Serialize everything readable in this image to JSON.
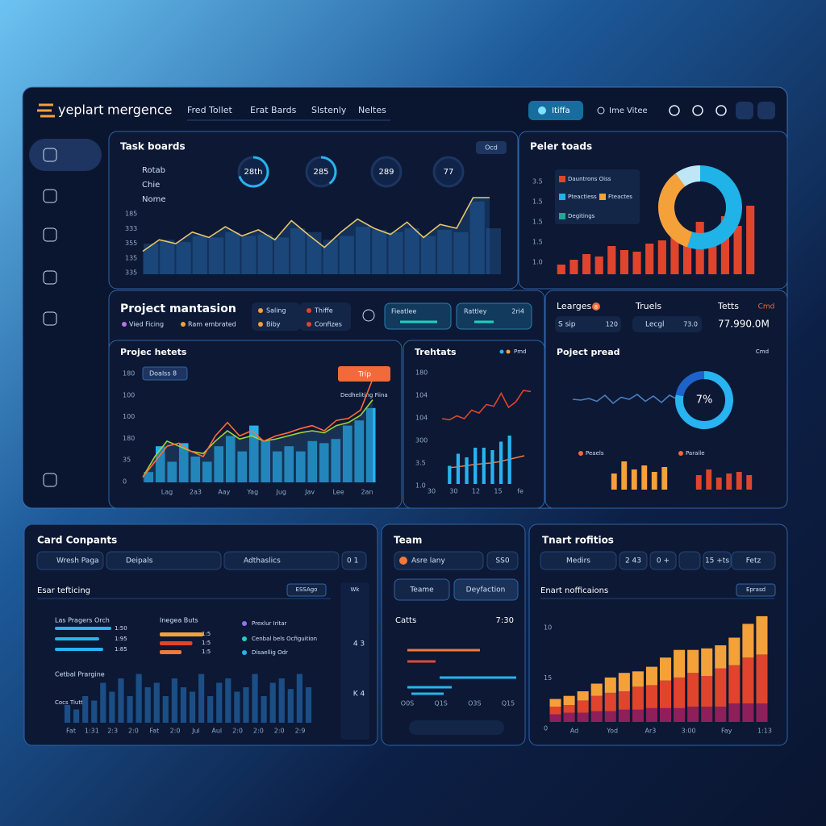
{
  "header": {
    "logo": "yeplart",
    "brand": "mergence",
    "nav": [
      "Fred Tollet",
      "Erat Bards",
      "Slstenly",
      "Neltes"
    ],
    "button": "Itiffa",
    "link": "Ime Vitee"
  },
  "task_boards": {
    "title": "Task boards",
    "badge": "Ocd",
    "legend": [
      "Rotab",
      "Chie",
      "Nome"
    ],
    "gauges": [
      {
        "label": "28th",
        "value": 70
      },
      {
        "label": "285",
        "value": 40
      },
      {
        "label": "289",
        "value": 0
      },
      {
        "label": "77",
        "value": 0
      }
    ],
    "y_labels": [
      "185",
      "333",
      "355",
      "135",
      "335"
    ],
    "line": [
      30,
      45,
      40,
      55,
      48,
      62,
      50,
      58,
      45,
      70,
      52,
      35,
      55,
      72,
      60,
      52,
      68,
      48,
      65,
      60,
      100,
      100
    ],
    "bars": [
      40,
      45,
      42,
      50,
      48,
      55,
      50,
      52,
      48,
      60,
      55,
      45,
      50,
      62,
      58,
      55,
      60,
      50,
      58,
      55,
      95,
      60
    ]
  },
  "peer_toads": {
    "title": "Peler toads",
    "legend": [
      {
        "label": "Dauntrons Oiss",
        "color": "#e0442c"
      },
      {
        "label": "Pteactiess",
        "color": "#1fb3e8"
      },
      {
        "label": "Fteactes",
        "color": "#f5a13a"
      },
      {
        "label": "Degitings",
        "color": "#1fa89a"
      }
    ],
    "y_labels": [
      "3.5",
      "1.5",
      "1.5",
      "1.5",
      "1.0"
    ],
    "bars": [
      12,
      18,
      25,
      22,
      35,
      30,
      28,
      38,
      42,
      55,
      50,
      65,
      48,
      72,
      60,
      85
    ],
    "bar_color": "#e0442c",
    "donut": [
      {
        "color": "#1fb3e8",
        "value": 55
      },
      {
        "color": "#f5a13a",
        "value": 35
      },
      {
        "color": "#bfe6f7",
        "value": 10
      }
    ]
  },
  "project": {
    "title": "Project mantasion",
    "subtitles": [
      "Vied Ficing",
      "Ram embrated"
    ],
    "chips": [
      "Saling",
      "Thiffe",
      "Biby",
      "Confizes"
    ],
    "widgets": [
      "Fieatlee",
      "Rattley",
      "2ri4"
    ]
  },
  "project_notes": {
    "title": "Projec hetets",
    "badge": "Doalss 8",
    "button": "Trip",
    "tooltip": "Dedheliting Fiina",
    "y_labels": [
      "180",
      "100",
      "100",
      "180",
      "35",
      "0"
    ],
    "x_labels": [
      "Lag",
      "2a3",
      "Aay",
      "Yag",
      "Jug",
      "Jav",
      "Lee",
      "2an"
    ],
    "bars": [
      10,
      35,
      20,
      38,
      25,
      20,
      35,
      45,
      30,
      55,
      40,
      30,
      35,
      30,
      40,
      38,
      42,
      55,
      60,
      72
    ],
    "line_orange": [
      5,
      20,
      35,
      38,
      30,
      25,
      45,
      58,
      45,
      50,
      40,
      45,
      48,
      52,
      55,
      50,
      60,
      62,
      70,
      100
    ],
    "line_green": [
      5,
      25,
      40,
      35,
      30,
      28,
      40,
      50,
      42,
      45,
      40,
      42,
      45,
      48,
      50,
      48,
      55,
      58,
      65,
      80
    ]
  },
  "trends": {
    "title": "Trehtats",
    "legend": "Pmd",
    "y_labels": [
      "180",
      "104",
      "104",
      "300",
      "3.5",
      "1.0"
    ],
    "x_labels": [
      "30",
      "30",
      "12",
      "15",
      "fe"
    ],
    "line": [
      30,
      28,
      35,
      30,
      45,
      40,
      55,
      52,
      75,
      50,
      60,
      80,
      78
    ],
    "line2": [
      20,
      22,
      25,
      28,
      30,
      32,
      35,
      40,
      45,
      50
    ],
    "bars": [
      15,
      25,
      22,
      30,
      30,
      28,
      35,
      40
    ]
  },
  "stats": [
    {
      "label": "Learges",
      "badge": "8",
      "sub": "S sip",
      "value": "120"
    },
    {
      "label": "Truels",
      "sub": "Lecgl",
      "value": "73.0"
    },
    {
      "label": "Tetts",
      "badge": "Cmd",
      "value": "77.990.0M"
    }
  ],
  "project_pread": {
    "title": "Poject pread",
    "badge": "Cmd",
    "center_text": "7%",
    "ring": [
      {
        "color": "#27b4f0",
        "value": 78
      },
      {
        "color": "#1d63c9",
        "value": 22
      }
    ],
    "spark": [
      50,
      48,
      52,
      45,
      60,
      40,
      55,
      50,
      62,
      45,
      58,
      42,
      60,
      50
    ],
    "legend": [
      "Peaels",
      "Paraile"
    ],
    "bars_a": [
      20,
      35,
      25,
      30,
      22,
      28
    ],
    "bars_b": [
      18,
      25,
      15,
      20,
      22,
      18
    ]
  },
  "card": {
    "title": "Card Conpants",
    "fields": [
      "Wresh Paga",
      "Deipals",
      "Adthaslics",
      "0 1"
    ],
    "section": "Esar tefticing",
    "section_badge": "ESSAgo",
    "side_badge": "Wk",
    "progress_title": "Las Pragers Orch",
    "progress": [
      {
        "label": "1:50",
        "value": 70
      },
      {
        "label": "1:95",
        "value": 55
      },
      {
        "label": "1:85",
        "value": 60
      }
    ],
    "mid_title": "Inegea Buts",
    "mid": [
      {
        "label": "1:5",
        "value": 60
      },
      {
        "label": "1:5",
        "value": 45
      },
      {
        "label": "1:5",
        "value": 30
      }
    ],
    "legend": [
      "Prexlur Iritar",
      "Cenbal bels Ocfiguition",
      "Disaellig Odr"
    ],
    "sub_title": "Cetbal Prargine",
    "sub2": "Cocs Tiutte",
    "bars": [
      20,
      15,
      30,
      25,
      45,
      35,
      50,
      30,
      55,
      40,
      45,
      30,
      50,
      40,
      35,
      55,
      30,
      45,
      50,
      35,
      40,
      55,
      30,
      45,
      50,
      38,
      55,
      40
    ],
    "x_labels": [
      "Fat",
      "1:31",
      "2:3",
      "2:0",
      "Fat",
      "2:0",
      "Jul",
      "Aul",
      "2:0",
      "2:0",
      "2:0",
      "2:9"
    ],
    "side_values": [
      "4 3",
      "K 4"
    ]
  },
  "team": {
    "title": "Team",
    "field": "Asre lany",
    "field_value": "SS0",
    "buttons": [
      "Teame",
      "Deyfaction"
    ],
    "sub": "Catts",
    "time": "7:30",
    "gantt": [
      {
        "start": 0,
        "length": 90,
        "color": "#f07a3a"
      },
      {
        "start": 0,
        "length": 35,
        "color": "#e04a3a"
      },
      {
        "start": 40,
        "length": 95,
        "color": "#27b4f0"
      },
      {
        "start": 0,
        "length": 55,
        "color": "#27b4f0"
      },
      {
        "start": 5,
        "length": 40,
        "color": "#27b4f0"
      }
    ],
    "x_labels": [
      "O0S",
      "Q1S",
      "O3S",
      "Q15"
    ]
  },
  "notifications": {
    "title": "Tnart rofitios",
    "fields": [
      "Medirs",
      "2 43",
      "0 +",
      "15 +ts",
      "Fetz"
    ],
    "section": "Enart nofficaions",
    "badge": "Eprasd",
    "y_labels": [
      "10",
      "15",
      "0"
    ],
    "x_labels": [
      "Ad",
      "Yod",
      "Ar3",
      "3:00",
      "Fay",
      "1:13"
    ],
    "series": [
      {
        "color": "#8e1f5a",
        "values": [
          5,
          6,
          6,
          7,
          7,
          8,
          8,
          9,
          9,
          9,
          10,
          10,
          10,
          12,
          12,
          12
        ]
      },
      {
        "color": "#e0442c",
        "values": [
          5,
          5,
          8,
          10,
          12,
          12,
          15,
          15,
          18,
          20,
          22,
          20,
          25,
          25,
          30,
          32
        ]
      },
      {
        "color": "#f5a13a",
        "values": [
          5,
          6,
          6,
          8,
          10,
          12,
          10,
          12,
          15,
          18,
          15,
          18,
          15,
          18,
          22,
          25
        ]
      }
    ]
  }
}
